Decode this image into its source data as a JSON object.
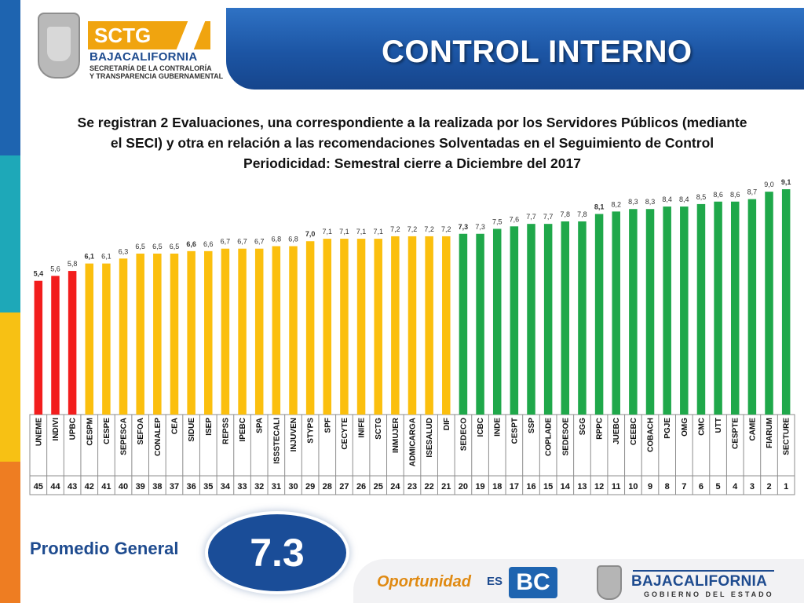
{
  "header": {
    "title": "CONTROL INTERNO",
    "logo_text": "SCTG",
    "logo_state": "BAJACALIFORNIA",
    "logo_sub_1": "SECRETARÍA DE LA CONTRALORÍA",
    "logo_sub_2": "Y TRANSPARENCIA GUBERNAMENTAL"
  },
  "description": {
    "line1": "Se registran 2 Evaluaciones, una correspondiente a la realizada por los Servidores Públicos (mediante",
    "line2": "el SECI) y otra en relación a las recomendaciones Solventadas en el Seguimiento de Control",
    "line3": "Periodicidad: Semestral cierre a Diciembre del 2017"
  },
  "colors": {
    "red": "#f21d1d",
    "yellow": "#fbbf0e",
    "green": "#1fa84a",
    "brand_blue": "#1e4b8f"
  },
  "chart_data": {
    "type": "bar",
    "categories": [
      "UNEME",
      "INDIVI",
      "UPBC",
      "CESPM",
      "CESPE",
      "SEPESCA",
      "SEFOA",
      "CONALEP",
      "CEA",
      "SIDUE",
      "ISEP",
      "REPSS",
      "IPEBC",
      "SPA",
      "ISSSTECALI",
      "INJUVEN",
      "STYPS",
      "SPF",
      "CECYTE",
      "INIFE",
      "SCTG",
      "INMUJER",
      "ADMICARGA",
      "ISESALUD",
      "DIF",
      "SEDECO",
      "ICBC",
      "INDE",
      "CESPT",
      "SSP",
      "COPLADE",
      "SEDESOE",
      "SGG",
      "RPPC",
      "JUEBC",
      "CEEBC",
      "COBACH",
      "PGJE",
      "OMG",
      "CMC",
      "UTT",
      "CESPTE",
      "CAME",
      "FIARUM",
      "SECTURE"
    ],
    "values": [
      5.4,
      5.6,
      5.8,
      6.1,
      6.1,
      6.3,
      6.5,
      6.5,
      6.5,
      6.6,
      6.6,
      6.7,
      6.7,
      6.7,
      6.8,
      6.8,
      7.0,
      7.1,
      7.1,
      7.1,
      7.1,
      7.2,
      7.2,
      7.2,
      7.2,
      7.3,
      7.3,
      7.5,
      7.6,
      7.7,
      7.7,
      7.8,
      7.8,
      8.1,
      8.2,
      8.3,
      8.3,
      8.4,
      8.4,
      8.5,
      8.6,
      8.6,
      8.7,
      9.0,
      9.1
    ],
    "value_labels": [
      "5,4",
      "5,6",
      "5,8",
      "6,1",
      "6,1",
      "6,3",
      "6,5",
      "6,5",
      "6,5",
      "6,6",
      "6,6",
      "6,7",
      "6,7",
      "6,7",
      "6,8",
      "6,8",
      "7,0",
      "7,1",
      "7,1",
      "7,1",
      "7,1",
      "7,2",
      "7,2",
      "7,2",
      "7,2",
      "7,3",
      "7,3",
      "7,5",
      "7,6",
      "7,7",
      "7,7",
      "7,8",
      "7,8",
      "8,1",
      "8,2",
      "8,3",
      "8,3",
      "8,4",
      "8,4",
      "8,5",
      "8,6",
      "8,6",
      "8,7",
      "9,0",
      "9,1"
    ],
    "bold_labels": [
      0,
      3,
      9,
      16,
      25,
      33,
      44
    ],
    "ranks": [
      "45",
      "44",
      "43",
      "42",
      "41",
      "40",
      "39",
      "38",
      "37",
      "36",
      "35",
      "34",
      "33",
      "32",
      "31",
      "30",
      "29",
      "28",
      "27",
      "26",
      "25",
      "24",
      "23",
      "22",
      "21",
      "20",
      "19",
      "18",
      "17",
      "16",
      "15",
      "14",
      "13",
      "12",
      "11",
      "10",
      "9",
      "8",
      "7",
      "6",
      "5",
      "4",
      "3",
      "2",
      "1"
    ],
    "color_groups": {
      "red": [
        0,
        1,
        2
      ],
      "yellow": [
        3,
        4,
        5,
        6,
        7,
        8,
        9,
        10,
        11,
        12,
        13,
        14,
        15,
        16,
        17,
        18,
        19,
        20,
        21,
        22,
        23,
        24
      ],
      "green": [
        25,
        26,
        27,
        28,
        29,
        30,
        31,
        32,
        33,
        34,
        35,
        36,
        37,
        38,
        39,
        40,
        41,
        42,
        43,
        44
      ]
    },
    "ylim": [
      0,
      9.1
    ],
    "grid": false,
    "title": "",
    "xlabel": "",
    "ylabel": ""
  },
  "footer": {
    "promedio_label": "Promedio General",
    "promedio_value": "7.3",
    "oportunidad": "Oportunidad",
    "es": "ES",
    "bc": "BC",
    "bc_state": "BAJACALIFORNIA",
    "bc_sub": "GOBIERNO DEL ESTADO"
  }
}
